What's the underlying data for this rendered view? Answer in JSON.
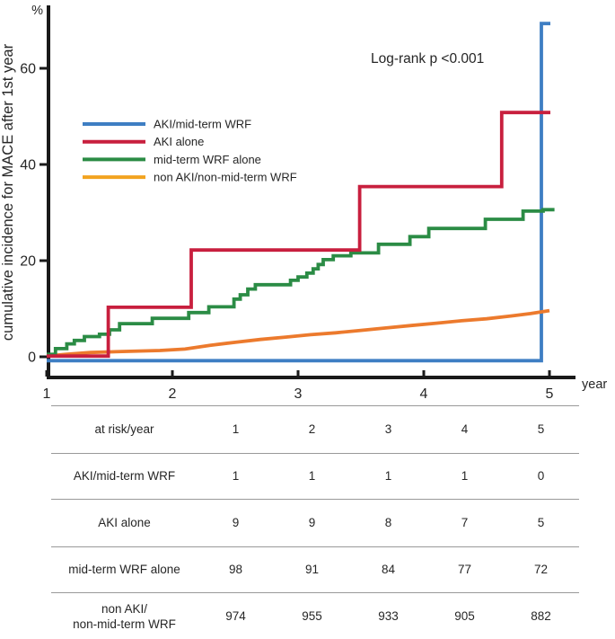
{
  "chart": {
    "unit_label": "%",
    "xlabel": "year",
    "annotation": "Log-rank p <0.001"
  },
  "chart_data": {
    "type": "line",
    "subtype": "kaplan-meier-step",
    "title": "",
    "ylabel": "cumulative incidence for MACE after 1st year",
    "xlabel": "year",
    "unit": "%",
    "xlim": [
      1,
      5
    ],
    "ylim": [
      0,
      70
    ],
    "xticks": [
      1,
      2,
      3,
      4,
      5
    ],
    "yticks": [
      0,
      20,
      40,
      60
    ],
    "grid": false,
    "legend_position": "upper-left-inside",
    "annotation": "Log-rank p <0.001",
    "series": [
      {
        "name": "AKI/mid-term WRF",
        "color": "#3E7EC3",
        "step": true,
        "points": [
          [
            1,
            -0.8
          ],
          [
            4.936,
            69.3
          ],
          [
            5.007,
            69.3
          ]
        ]
      },
      {
        "name": "AKI alone",
        "color": "#C81F3E",
        "step": true,
        "points": [
          [
            1,
            0.15
          ],
          [
            1.49,
            10.3
          ],
          [
            2.15,
            22.2
          ],
          [
            3.49,
            35.4
          ],
          [
            4.62,
            50.8
          ],
          [
            5.007,
            50.8
          ]
        ]
      },
      {
        "name": "mid-term WRF alone",
        "color": "#2B8C45",
        "step": true,
        "points": [
          [
            1,
            0.5
          ],
          [
            1.07,
            1.7
          ],
          [
            1.16,
            2.7
          ],
          [
            1.22,
            3.4
          ],
          [
            1.3,
            4.2
          ],
          [
            1.42,
            4.7
          ],
          [
            1.5,
            5.6
          ],
          [
            1.58,
            6.9
          ],
          [
            1.84,
            8.0
          ],
          [
            2.13,
            9.2
          ],
          [
            2.29,
            10.4
          ],
          [
            2.49,
            12.0
          ],
          [
            2.54,
            12.9
          ],
          [
            2.6,
            14.1
          ],
          [
            2.66,
            15.0
          ],
          [
            2.94,
            15.9
          ],
          [
            3.0,
            16.6
          ],
          [
            3.07,
            17.4
          ],
          [
            3.12,
            18.3
          ],
          [
            3.16,
            19.2
          ],
          [
            3.2,
            20.2
          ],
          [
            3.28,
            21.0
          ],
          [
            3.42,
            21.6
          ],
          [
            3.64,
            23.4
          ],
          [
            3.89,
            25.0
          ],
          [
            4.04,
            26.7
          ],
          [
            4.49,
            28.6
          ],
          [
            4.79,
            30.3
          ],
          [
            4.95,
            30.6
          ],
          [
            5.04,
            30.6
          ]
        ]
      },
      {
        "name": "non AKI/non-mid-term WRF",
        "color": "#EC7A2D",
        "legend_color": "#F2A31F",
        "step": false,
        "points": [
          [
            1,
            0.15
          ],
          [
            1.15,
            0.5
          ],
          [
            1.35,
            0.9
          ],
          [
            1.6,
            1.1
          ],
          [
            1.9,
            1.3
          ],
          [
            2.1,
            1.6
          ],
          [
            2.3,
            2.4
          ],
          [
            2.5,
            3.0
          ],
          [
            2.7,
            3.6
          ],
          [
            2.9,
            4.1
          ],
          [
            3.1,
            4.6
          ],
          [
            3.3,
            5.0
          ],
          [
            3.5,
            5.5
          ],
          [
            3.7,
            6.0
          ],
          [
            3.9,
            6.5
          ],
          [
            4.1,
            7.0
          ],
          [
            4.3,
            7.5
          ],
          [
            4.5,
            7.9
          ],
          [
            4.7,
            8.5
          ],
          [
            4.85,
            9.0
          ],
          [
            5.0,
            9.6
          ]
        ]
      }
    ]
  },
  "table": {
    "rows": [
      {
        "label": "at risk/year",
        "values": [
          "1",
          "2",
          "3",
          "4",
          "5"
        ]
      },
      {
        "label": "AKI/mid-term WRF",
        "values": [
          "1",
          "1",
          "1",
          "1",
          "0"
        ]
      },
      {
        "label": "AKI alone",
        "values": [
          "9",
          "9",
          "8",
          "7",
          "5"
        ]
      },
      {
        "label": "mid-term WRF alone",
        "values": [
          "98",
          "91",
          "84",
          "77",
          "72"
        ]
      },
      {
        "label": "non AKI/\nnon-mid-term WRF",
        "values": [
          "974",
          "955",
          "933",
          "905",
          "882"
        ]
      }
    ]
  },
  "style": {
    "axis_color": "#1a1a1a",
    "text_color": "#262626",
    "rule_color": "#999999",
    "background": "#ffffff"
  }
}
